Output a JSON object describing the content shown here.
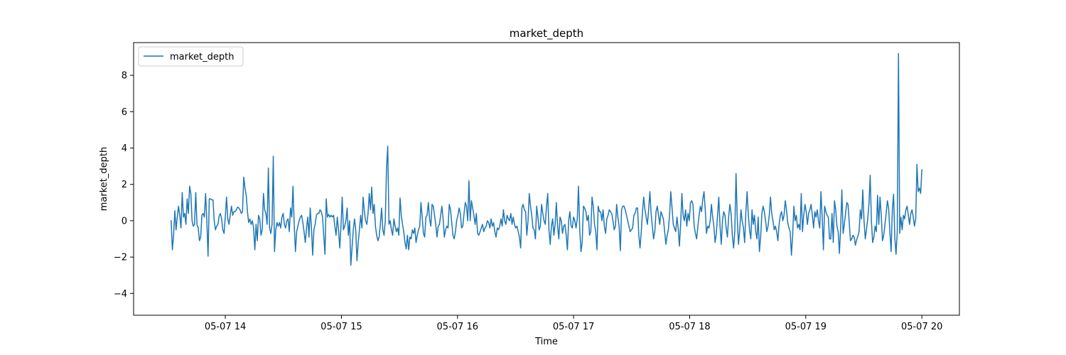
{
  "chart_data": {
    "type": "line",
    "title": "market_depth",
    "xlabel": "Time",
    "ylabel": "market_depth",
    "x_start": "05-07 13:32",
    "x_end": "05-07 20:00",
    "x_interval_minutes": 1,
    "x_ticks": [
      "05-07 14",
      "05-07 15",
      "05-07 16",
      "05-07 17",
      "05-07 18",
      "05-07 19",
      "05-07 20"
    ],
    "y_ticks": [
      -4,
      -2,
      0,
      2,
      4,
      6,
      8
    ],
    "ylim": [
      -5.2,
      9.8
    ],
    "grid": false,
    "legend": {
      "position": "top-left",
      "entries": [
        "market_depth"
      ]
    },
    "series": [
      {
        "name": "market_depth",
        "color": "#1f77b4",
        "values": [
          0.0,
          -1.6,
          -0.8,
          0.55,
          -0.5,
          0.2,
          0.8,
          0.3,
          -0.4,
          1.55,
          0.2,
          0.4,
          -0.2,
          1.2,
          0.4,
          1.9,
          1.5,
          0.0,
          -0.3,
          -0.2,
          1.55,
          -0.2,
          -0.4,
          -1.1,
          -0.9,
          0.3,
          0.4,
          0.2,
          1.5,
          0.0,
          -1.95,
          1.2,
          1.2,
          1.15,
          1.15,
          0.0,
          -0.5,
          -0.3,
          -0.2,
          0.25,
          0.4,
          0.1,
          -0.5,
          -0.7,
          0.2,
          1.3,
          0.1,
          -0.2,
          0.3,
          0.8,
          0.3,
          0.5,
          0.5,
          0.6,
          0.75,
          0.7,
          0.6,
          0.4,
          0.5,
          2.4,
          1.8,
          1.4,
          0.5,
          -0.1,
          0.1,
          -0.2,
          0.0,
          -0.4,
          -1.6,
          -0.2,
          -1.1,
          0.3,
          0.1,
          -0.8,
          -0.5,
          1.5,
          0.6,
          0.4,
          -0.2,
          2.9,
          -0.4,
          -0.7,
          -0.2,
          3.55,
          -1.7,
          -0.5,
          -0.1,
          -0.3,
          -0.1,
          -0.4,
          0.2,
          0.4,
          -0.2,
          -0.4,
          0.0,
          0.1,
          -0.6,
          0.7,
          0.2,
          1.9,
          -0.2,
          -1.7,
          -0.6,
          -0.3,
          0.0,
          0.2,
          0.3,
          -0.1,
          -0.6,
          -1.2,
          -0.4,
          0.2,
          -0.9,
          0.7,
          -0.4,
          -1.9,
          -0.5,
          -0.2,
          0.3,
          0.4,
          0.4,
          0.6,
          0.5,
          0.2,
          -0.8,
          -1.85,
          1.2,
          0.2,
          0.35,
          0.2,
          0.3,
          0.2,
          0.3,
          -0.3,
          -0.8,
          0.2,
          -0.5,
          -1.5,
          -0.3,
          1.3,
          -0.5,
          -0.3,
          0.0,
          0.7,
          -0.8,
          0.0,
          -2.45,
          -1.5,
          -0.5,
          0.1,
          -0.5,
          -2.2,
          -1.2,
          -0.5,
          0.3,
          -0.4,
          1.3,
          0.5,
          0.0,
          -0.2,
          0.4,
          1.5,
          0.6,
          1.85,
          0.4,
          0.9,
          -0.3,
          -0.8,
          -1.1,
          -0.9,
          -0.2,
          0.7,
          -0.5,
          -0.8,
          0.0,
          2.9,
          4.1,
          -0.2,
          0.0,
          -0.5,
          -0.8,
          0.1,
          -0.3,
          -0.6,
          -0.4,
          -0.8,
          1.25,
          0.3,
          -0.2,
          -0.6,
          -1.2,
          -1.55,
          -0.8,
          -1.6,
          -0.9,
          -1.0,
          -0.5,
          -0.7,
          -0.4,
          -1.2,
          -0.8,
          -0.5,
          -0.3,
          1.0,
          0.2,
          -0.7,
          -0.9,
          0.2,
          0.3,
          1.0,
          0.1,
          -0.3,
          0.9,
          0.8,
          0.3,
          -0.2,
          -0.9,
          -0.3,
          -0.2,
          0.3,
          0.8,
          0.1,
          -0.9,
          -0.5,
          -0.3,
          -0.4,
          0.9,
          0.6,
          -0.1,
          -0.8,
          -1.0,
          -0.6,
          0.0,
          0.3,
          0.7,
          0.4,
          -0.4,
          -0.3,
          0.4,
          1.0,
          0.8,
          0.0,
          2.2,
          0.0,
          1.1,
          0.7,
          0.3,
          -0.2,
          0.4,
          -0.7,
          -0.8,
          -0.6,
          -0.4,
          -0.2,
          -0.6,
          -0.4,
          -0.3,
          0.0,
          -0.1,
          -0.4,
          0.1,
          -0.3,
          -0.1,
          -0.6,
          -0.9,
          -0.4,
          -0.5,
          -0.3,
          0.1,
          -0.3,
          0.6,
          0.0,
          -0.2,
          0.3,
          0.1,
          0.0,
          0.4,
          -0.2,
          0.2,
          -0.2,
          -0.4,
          -0.3,
          -0.6,
          -0.9,
          -1.5,
          0.7,
          0.9,
          0.6,
          0.5,
          -0.8,
          0.0,
          1.5,
          0.8,
          0.3,
          -0.4,
          -0.5,
          -1.0,
          0.8,
          0.2,
          -0.5,
          -0.3,
          0.9,
          0.4,
          0.0,
          -0.2,
          0.8,
          1.5,
          -0.5,
          -1.3,
          -0.3,
          0.1,
          -0.8,
          -0.2,
          1.0,
          -0.3,
          -1.0,
          0.2,
          0.0,
          -0.7,
          -0.3,
          -0.2,
          -0.8,
          -1.6,
          0.0,
          0.5,
          -0.3,
          -0.4,
          0.2,
          0.0,
          -0.4,
          0.1,
          1.9,
          -0.5,
          -1.7,
          -1.2,
          0.8,
          0.7,
          0.5,
          0.0,
          0.3,
          -0.8,
          -0.6,
          1.3,
          0.8,
          -0.2,
          -0.6,
          -1.6,
          0.8,
          0.5,
          0.5,
          0.0,
          0.6,
          -0.3,
          -0.7,
          0.1,
          0.3,
          0.6,
          0.5,
          0.4,
          0.0,
          -0.5,
          -0.3,
          0.9,
          0.2,
          -0.3,
          -1.65,
          0.6,
          0.8,
          0.8,
          0.6,
          0.3,
          0.0,
          -0.3,
          -0.6,
          -0.5,
          -0.4,
          0.3,
          0.4,
          0.7,
          0.7,
          -0.8,
          -1.5,
          -0.6,
          0.5,
          1.3,
          0.6,
          0.2,
          -0.2,
          0.6,
          1.6,
          0.4,
          -0.3,
          -1.0,
          -0.6,
          0.5,
          0.8,
          0.3,
          -0.2,
          0.5,
          0.3,
          0.1,
          -0.6,
          -1.3,
          -0.8,
          -0.5,
          0.3,
          1.6,
          0.7,
          -0.2,
          -0.4,
          -0.6,
          0.2,
          -0.4,
          -1.4,
          -0.2,
          1.5,
          0.3,
          0.0,
          0.6,
          -0.3,
          0.4,
          0.0,
          1.0,
          1.1,
          0.9,
          -0.3,
          -0.7,
          -1.0,
          -0.3,
          0.3,
          0.8,
          0.5,
          1.2,
          1.6,
          0.6,
          -0.7,
          -0.3,
          -0.4,
          0.0,
          0.9,
          0.2,
          -0.3,
          -1.2,
          -0.7,
          0.3,
          1.3,
          -0.3,
          -1.3,
          0.0,
          0.5,
          0.3,
          -0.4,
          -0.9,
          0.2,
          0.9,
          0.4,
          -0.8,
          -1.5,
          -0.6,
          2.6,
          0.1,
          -1.3,
          -0.5,
          0.6,
          0.0,
          -0.4,
          -1.2,
          0.5,
          1.6,
          0.3,
          -0.5,
          -1.0,
          0.6,
          -0.2,
          0.3,
          -0.6,
          -1.0,
          0.2,
          -1.7,
          -0.9,
          0.4,
          0.8,
          0.5,
          0.0,
          -0.6,
          -0.3,
          0.3,
          1.3,
          0.4,
          0.0,
          -0.5,
          -0.3,
          -0.6,
          -1.1,
          -0.2,
          0.3,
          0.5,
          0.0,
          0.3,
          1.1,
          0.6,
          -0.1,
          -0.4,
          -0.6,
          -1.9,
          -0.8,
          0.8,
          0.0,
          0.3,
          -0.4,
          -0.2,
          -0.5,
          1.5,
          -0.6,
          0.3,
          0.9,
          0.5,
          -0.2,
          0.4,
          0.6,
          0.9,
          0.3,
          -0.4,
          0.5,
          0.2,
          0.6,
          0.0,
          -0.4,
          1.6,
          0.2,
          -1.6,
          0.8,
          0.5,
          0.3,
          0.2,
          -1.0,
          -1.0,
          0.4,
          -1.2,
          1.1,
          0.6,
          -0.3,
          -0.6,
          -1.8,
          -0.4,
          1.7,
          -0.7,
          -0.2,
          0.4,
          1.0,
          0.9,
          -0.1,
          -1.1,
          -1.0,
          -0.8,
          -0.9,
          -1.35,
          -1.05,
          -0.85,
          -0.6,
          0.6,
          0.1,
          1.7,
          0.0,
          -1.0,
          -0.5,
          0.1,
          0.9,
          2.5,
          0.0,
          -1.2,
          -0.9,
          -0.3,
          -0.6,
          1.4,
          -0.2,
          1.3,
          0.3,
          -1.1,
          -0.8,
          -0.2,
          0.4,
          1.1,
          0.7,
          -0.6,
          -1.7,
          0.6,
          1.45,
          -0.9,
          -1.85,
          -0.6,
          9.2,
          -0.7,
          0.2,
          -0.5,
          0.3,
          0.1,
          0.6,
          0.8,
          0.3,
          -0.2,
          0.4,
          0.6,
          0.2,
          -0.3,
          0.1,
          3.1,
          1.6,
          1.8,
          1.5,
          2.8
        ]
      }
    ]
  }
}
